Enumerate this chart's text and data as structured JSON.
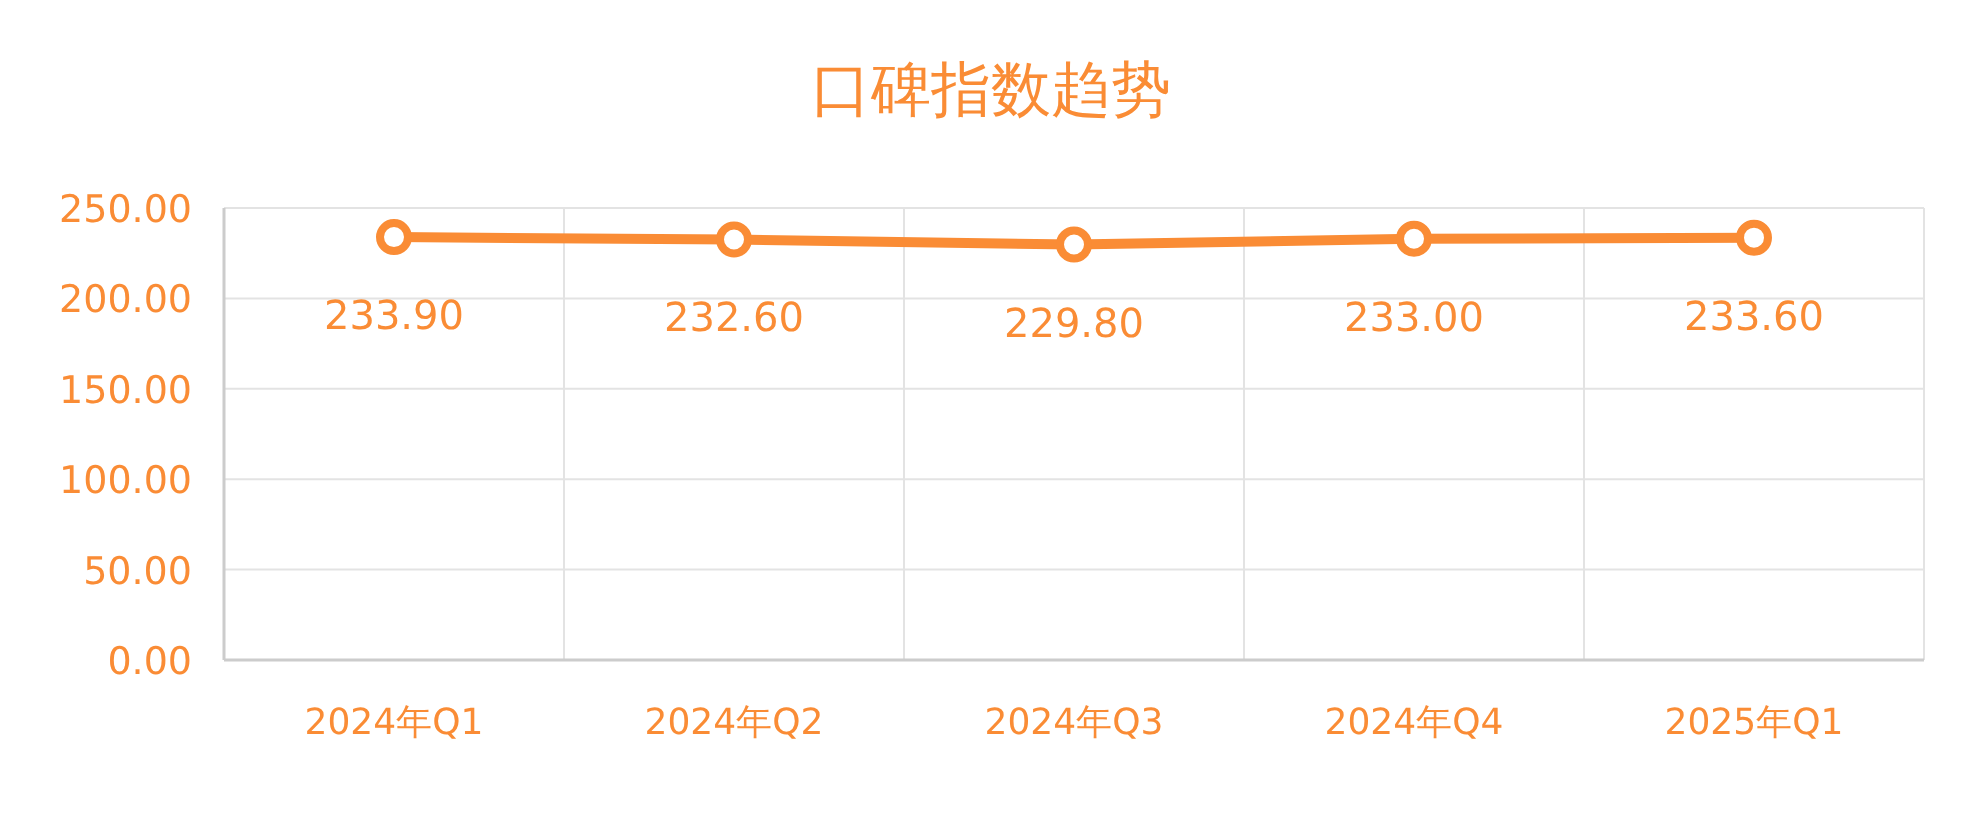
{
  "chart_data": {
    "type": "line",
    "title": "口碑指数趋势",
    "categories": [
      "2024年Q1",
      "2024年Q2",
      "2024年Q3",
      "2024年Q4",
      "2025年Q1"
    ],
    "series": [
      {
        "color": "#fa8c35",
        "values": [
          233.9,
          232.6,
          229.8,
          233.0,
          233.6
        ],
        "value_labels": [
          "233.90",
          "232.60",
          "229.80",
          "233.00",
          "233.60"
        ]
      }
    ],
    "ylim": [
      0,
      250
    ],
    "yticks": [
      {
        "value": 0,
        "label": "0.00"
      },
      {
        "value": 50,
        "label": "50.00"
      },
      {
        "value": 100,
        "label": "100.00"
      },
      {
        "value": 150,
        "label": "150.00"
      },
      {
        "value": 200,
        "label": "200.00"
      },
      {
        "value": 250,
        "label": "250.00"
      }
    ],
    "grid": true,
    "marker": "circle",
    "line_style": "solid"
  }
}
